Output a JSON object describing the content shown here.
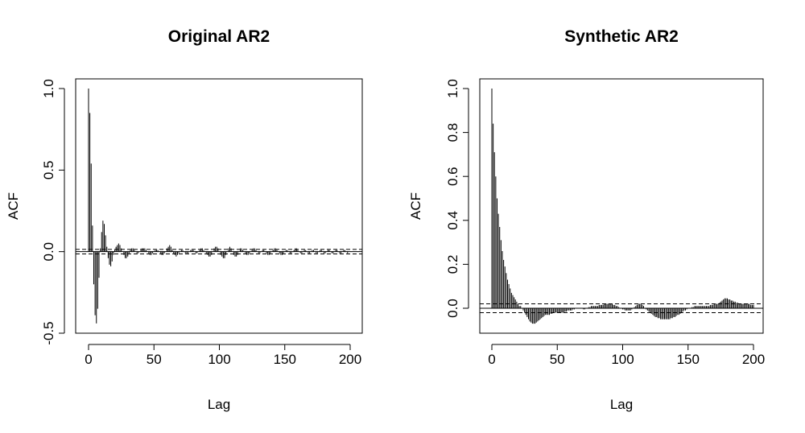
{
  "chart_data": [
    {
      "type": "bar",
      "title": "Original AR2",
      "xlabel": "Lag",
      "ylabel": "ACF",
      "xlim": [
        0,
        200
      ],
      "ylim": [
        -0.5,
        1.0
      ],
      "x_ticks": [
        0,
        50,
        100,
        150,
        200
      ],
      "x_tick_labels": [
        "0",
        "50",
        "100",
        "150",
        "200"
      ],
      "y_ticks": [
        -0.5,
        0.0,
        0.5,
        1.0
      ],
      "y_tick_labels": [
        "-0.5",
        "0.0",
        "0.5",
        "1.0"
      ],
      "confidence_band": [
        -0.014,
        0.014
      ],
      "lags": [
        0,
        1,
        2,
        3,
        4,
        5,
        6,
        7,
        8,
        9,
        10,
        11,
        12,
        13,
        14,
        15,
        16,
        17,
        18,
        19,
        20,
        21,
        22,
        23,
        24,
        25,
        26,
        27,
        28,
        29,
        30,
        31,
        32,
        33,
        34,
        35,
        36,
        37,
        38,
        39,
        40,
        41,
        42,
        43,
        44,
        45,
        46,
        47,
        48,
        49,
        50,
        51,
        52,
        53,
        54,
        55,
        56,
        57,
        58,
        59,
        60,
        61,
        62,
        63,
        64,
        65,
        66,
        67,
        68,
        69,
        70,
        71,
        72,
        73,
        74,
        75,
        76,
        77,
        78,
        79,
        80,
        81,
        82,
        83,
        84,
        85,
        86,
        87,
        88,
        89,
        90,
        91,
        92,
        93,
        94,
        95,
        96,
        97,
        98,
        99,
        100,
        101,
        102,
        103,
        104,
        105,
        106,
        107,
        108,
        109,
        110,
        111,
        112,
        113,
        114,
        115,
        116,
        117,
        118,
        119,
        120,
        121,
        122,
        123,
        124,
        125,
        126,
        127,
        128,
        129,
        130,
        131,
        132,
        133,
        134,
        135,
        136,
        137,
        138,
        139,
        140,
        141,
        142,
        143,
        144,
        145,
        146,
        147,
        148,
        149,
        150,
        151,
        152,
        153,
        154,
        155,
        156,
        157,
        158,
        159,
        160,
        161,
        162,
        163,
        164,
        165,
        166,
        167,
        168,
        169,
        170,
        171,
        172,
        173,
        174,
        175,
        176,
        177,
        178,
        179,
        180,
        181,
        182,
        183,
        184,
        185,
        186,
        187,
        188,
        189,
        190,
        191,
        192,
        193,
        194,
        195,
        196,
        197,
        198,
        199,
        200
      ],
      "values": [
        1.0,
        0.85,
        0.54,
        0.16,
        -0.2,
        -0.39,
        -0.44,
        -0.35,
        -0.16,
        0.02,
        0.12,
        0.19,
        0.17,
        0.1,
        0.03,
        -0.04,
        -0.08,
        -0.09,
        -0.06,
        -0.02,
        0.01,
        0.03,
        0.04,
        0.05,
        0.04,
        0.02,
        0.0,
        -0.02,
        -0.04,
        -0.04,
        -0.03,
        -0.01,
        0.01,
        0.02,
        0.02,
        0.01,
        0.0,
        -0.01,
        -0.01,
        0.0,
        0.01,
        0.02,
        0.02,
        0.02,
        0.01,
        0.0,
        -0.01,
        -0.02,
        -0.02,
        -0.01,
        0.0,
        0.01,
        0.01,
        0.01,
        0.0,
        -0.01,
        -0.02,
        -0.02,
        -0.01,
        0.0,
        0.02,
        0.03,
        0.04,
        0.03,
        0.01,
        -0.01,
        -0.02,
        -0.03,
        -0.02,
        -0.01,
        0.0,
        0.01,
        0.01,
        0.0,
        -0.01,
        -0.01,
        -0.01,
        0.0,
        0.01,
        0.01,
        0.01,
        0.0,
        -0.01,
        -0.01,
        0.0,
        0.01,
        0.02,
        0.02,
        0.01,
        0.0,
        -0.01,
        -0.02,
        -0.03,
        -0.03,
        -0.02,
        0.0,
        0.02,
        0.03,
        0.03,
        0.02,
        0.0,
        -0.02,
        -0.03,
        -0.04,
        -0.04,
        -0.02,
        0.0,
        0.02,
        0.03,
        0.02,
        0.0,
        -0.02,
        -0.03,
        -0.03,
        -0.02,
        0.0,
        0.02,
        0.02,
        0.01,
        0.0,
        -0.01,
        -0.02,
        -0.02,
        -0.01,
        0.0,
        0.01,
        0.02,
        0.02,
        0.01,
        0.0,
        -0.01,
        -0.01,
        0.0,
        0.01,
        0.01,
        0.0,
        -0.01,
        -0.02,
        -0.02,
        -0.01,
        0.0,
        0.01,
        0.02,
        0.02,
        0.01,
        0.0,
        -0.01,
        -0.02,
        -0.02,
        -0.01,
        0.0,
        0.01,
        0.01,
        0.0,
        -0.01,
        -0.01,
        0.0,
        0.01,
        0.02,
        0.02,
        0.01,
        0.0,
        -0.01,
        -0.01,
        0.0,
        0.01,
        0.01,
        0.0,
        -0.01,
        -0.01,
        0.0,
        0.01,
        0.01,
        0.0,
        -0.01,
        -0.01,
        0.0,
        0.01,
        0.01,
        0.0,
        -0.01,
        -0.01,
        0.0,
        0.01,
        0.01,
        0.0,
        -0.01,
        -0.01,
        0.0,
        0.01,
        0.01,
        0.0,
        -0.01,
        -0.01,
        0.0,
        0.01,
        0.01,
        0.0,
        -0.01,
        0.0
      ]
    },
    {
      "type": "bar",
      "title": "Synthetic AR2",
      "xlabel": "Lag",
      "ylabel": "ACF",
      "xlim": [
        0,
        200
      ],
      "ylim": [
        -0.1,
        1.0
      ],
      "x_ticks": [
        0,
        50,
        100,
        150,
        200
      ],
      "x_tick_labels": [
        "0",
        "50",
        "100",
        "150",
        "200"
      ],
      "y_ticks": [
        0.0,
        0.2,
        0.4,
        0.6,
        0.8,
        1.0
      ],
      "y_tick_labels": [
        "0.0",
        "0.2",
        "0.4",
        "0.6",
        "0.8",
        "1.0"
      ],
      "confidence_band": [
        -0.02,
        0.02
      ],
      "lags": [
        0,
        1,
        2,
        3,
        4,
        5,
        6,
        7,
        8,
        9,
        10,
        11,
        12,
        13,
        14,
        15,
        16,
        17,
        18,
        19,
        20,
        21,
        22,
        23,
        24,
        25,
        26,
        27,
        28,
        29,
        30,
        31,
        32,
        33,
        34,
        35,
        36,
        37,
        38,
        39,
        40,
        41,
        42,
        43,
        44,
        45,
        46,
        47,
        48,
        49,
        50,
        51,
        52,
        53,
        54,
        55,
        56,
        57,
        58,
        59,
        60,
        61,
        62,
        63,
        64,
        65,
        66,
        67,
        68,
        69,
        70,
        71,
        72,
        73,
        74,
        75,
        76,
        77,
        78,
        79,
        80,
        81,
        82,
        83,
        84,
        85,
        86,
        87,
        88,
        89,
        90,
        91,
        92,
        93,
        94,
        95,
        96,
        97,
        98,
        99,
        100,
        101,
        102,
        103,
        104,
        105,
        106,
        107,
        108,
        109,
        110,
        111,
        112,
        113,
        114,
        115,
        116,
        117,
        118,
        119,
        120,
        121,
        122,
        123,
        124,
        125,
        126,
        127,
        128,
        129,
        130,
        131,
        132,
        133,
        134,
        135,
        136,
        137,
        138,
        139,
        140,
        141,
        142,
        143,
        144,
        145,
        146,
        147,
        148,
        149,
        150,
        151,
        152,
        153,
        154,
        155,
        156,
        157,
        158,
        159,
        160,
        161,
        162,
        163,
        164,
        165,
        166,
        167,
        168,
        169,
        170,
        171,
        172,
        173,
        174,
        175,
        176,
        177,
        178,
        179,
        180,
        181,
        182,
        183,
        184,
        185,
        186,
        187,
        188,
        189,
        190,
        191,
        192,
        193,
        194,
        195,
        196,
        197,
        198,
        199,
        200
      ],
      "values": [
        1.0,
        0.84,
        0.71,
        0.6,
        0.5,
        0.43,
        0.37,
        0.31,
        0.26,
        0.22,
        0.19,
        0.16,
        0.13,
        0.11,
        0.09,
        0.07,
        0.06,
        0.05,
        0.04,
        0.03,
        0.02,
        0.01,
        0.01,
        0.0,
        -0.01,
        -0.02,
        -0.03,
        -0.04,
        -0.05,
        -0.06,
        -0.065,
        -0.07,
        -0.07,
        -0.07,
        -0.065,
        -0.06,
        -0.055,
        -0.05,
        -0.045,
        -0.04,
        -0.035,
        -0.03,
        -0.03,
        -0.03,
        -0.03,
        -0.025,
        -0.025,
        -0.02,
        -0.02,
        -0.02,
        -0.02,
        -0.02,
        -0.02,
        -0.02,
        -0.02,
        -0.02,
        -0.015,
        -0.015,
        -0.01,
        -0.01,
        -0.01,
        -0.01,
        -0.005,
        -0.005,
        0.0,
        0.0,
        0.0,
        0.0,
        0.0,
        0.0,
        -0.005,
        -0.005,
        0.0,
        0.0,
        0.005,
        0.005,
        0.01,
        0.01,
        0.01,
        0.01,
        0.01,
        0.01,
        0.015,
        0.015,
        0.015,
        0.015,
        0.02,
        0.02,
        0.02,
        0.02,
        0.02,
        0.02,
        0.02,
        0.015,
        0.015,
        0.01,
        0.01,
        0.005,
        0.0,
        0.0,
        -0.005,
        -0.005,
        -0.01,
        -0.01,
        -0.01,
        -0.01,
        -0.01,
        -0.005,
        0.0,
        0.005,
        0.01,
        0.015,
        0.02,
        0.02,
        0.02,
        0.015,
        0.01,
        0.0,
        -0.005,
        -0.01,
        -0.015,
        -0.02,
        -0.025,
        -0.03,
        -0.035,
        -0.04,
        -0.04,
        -0.045,
        -0.045,
        -0.05,
        -0.05,
        -0.05,
        -0.05,
        -0.05,
        -0.05,
        -0.05,
        -0.05,
        -0.045,
        -0.045,
        -0.04,
        -0.04,
        -0.035,
        -0.03,
        -0.03,
        -0.025,
        -0.02,
        -0.015,
        -0.01,
        -0.01,
        -0.005,
        0.0,
        0.0,
        0.0,
        0.005,
        0.005,
        0.01,
        0.01,
        0.01,
        0.01,
        0.01,
        0.01,
        0.01,
        0.01,
        0.01,
        0.01,
        0.01,
        0.01,
        0.015,
        0.015,
        0.015,
        0.02,
        0.02,
        0.02,
        0.02,
        0.025,
        0.03,
        0.035,
        0.04,
        0.045,
        0.045,
        0.045,
        0.04,
        0.04,
        0.035,
        0.035,
        0.03,
        0.03,
        0.025,
        0.025,
        0.02,
        0.02,
        0.02,
        0.02,
        0.02,
        0.02,
        0.02,
        0.02,
        0.02,
        0.015,
        0.015,
        0.015,
        0.015,
        0.015,
        0.015,
        0.015
      ]
    }
  ]
}
